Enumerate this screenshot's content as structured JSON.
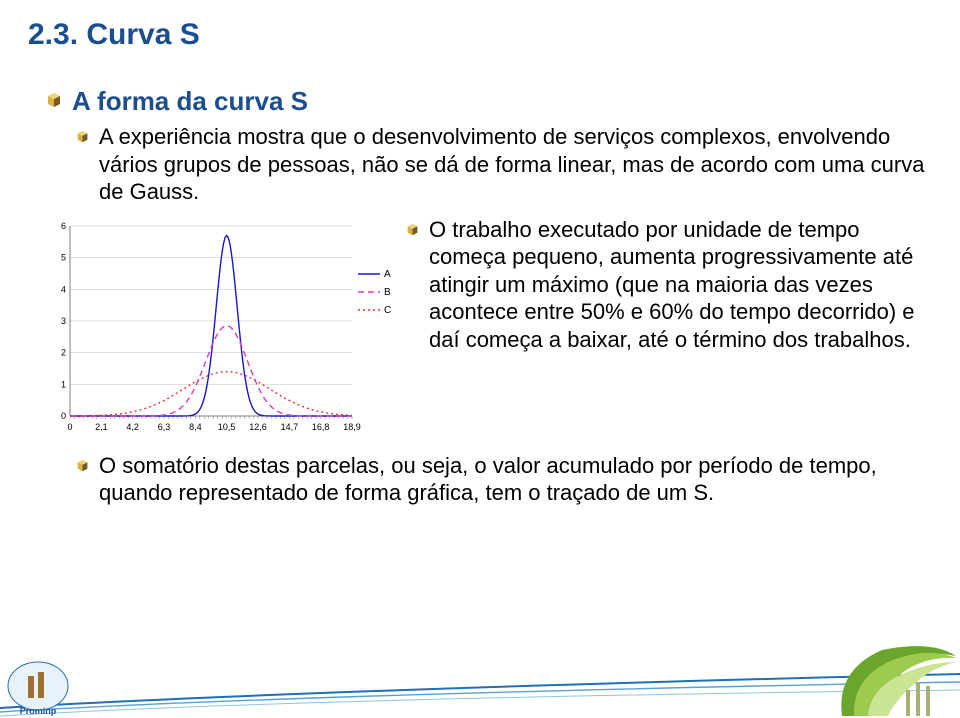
{
  "title": "2.3. Curva S",
  "subtitle": "A forma da curva S",
  "para1": "A experiência mostra que o desenvolvimento de serviços complexos, envolvendo vários grupos de pessoas, não se dá de forma linear, mas de acordo com uma curva de Gauss.",
  "para2": "O trabalho executado por unidade de tempo começa pequeno, aumenta progressivamente até atingir um máximo (que na maioria das vezes acontece entre 50% e 60% do tempo decorrido) e daí começa a baixar, até o término dos trabalhos.",
  "para3": "O somatório destas parcelas, ou seja, o valor acumulado por período de tempo, quando representado de forma gráfica, tem o traçado de um S.",
  "chart": {
    "type": "line",
    "xlim": [
      0,
      18.9
    ],
    "ylim": [
      0,
      6
    ],
    "xticks": [
      "0",
      "2,1",
      "4,2",
      "6,3",
      "8,4",
      "10,5",
      "12,6",
      "14,7",
      "16,8",
      "18,9"
    ],
    "yticks": [
      "0",
      "1",
      "2",
      "3",
      "4",
      "5",
      "6"
    ],
    "xtick_positions": [
      0,
      2.1,
      4.2,
      6.3,
      8.4,
      10.5,
      12.6,
      14.7,
      16.8,
      18.9
    ],
    "ytick_positions": [
      0,
      1,
      2,
      3,
      4,
      5,
      6
    ],
    "series": [
      {
        "name": "A",
        "color": "#1818c9",
        "dash": "none",
        "mu": 10.5,
        "sigma": 0.7,
        "peak": 5.7
      },
      {
        "name": "B",
        "color": "#d63bc1",
        "dash": "6,4",
        "mu": 10.5,
        "sigma": 1.4,
        "peak": 2.85
      },
      {
        "name": "C",
        "color": "#e23333",
        "dash": "2,3",
        "mu": 10.5,
        "sigma": 2.9,
        "peak": 1.4
      }
    ],
    "axis_fontsize": 9,
    "legend_fontsize": 10,
    "plot_bg": "#ffffff",
    "axis_color": "#808080",
    "grid_color": "#bfbfbf"
  },
  "colors": {
    "title": "#1b4e8f",
    "cube_light": "#d9b04a",
    "cube_dark": "#7a5a1c",
    "cube_top": "#f0d27a"
  }
}
